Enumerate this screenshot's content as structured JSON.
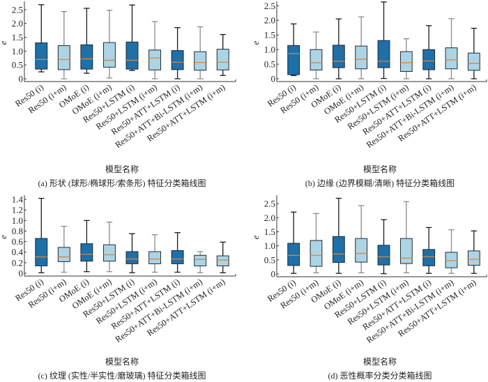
{
  "colors": {
    "dark_box": "#1f6fa8",
    "light_box": "#add4e4",
    "median": "#d9863a",
    "median_alt": "#8a8a8a",
    "whisker_dark": "#1a1a1a",
    "whisker_gray": "#8a8a8a",
    "axis": "#333333"
  },
  "chart_data": [
    {
      "id": "a",
      "type": "box",
      "ylabel": "e",
      "xlabel": "模型名称",
      "caption": "(a)  形状 (球形/椭球形/索条形) 特征分类箱线图",
      "ylim": [
        0,
        2.8
      ],
      "yticks": [
        0,
        0.5,
        1.0,
        1.5,
        2.0,
        2.5
      ],
      "ytick_labels": [
        "0",
        "0.5",
        "1.0",
        "1.5",
        "2.0",
        "2.5"
      ],
      "categories": [
        "Res50 (i)",
        "Res50 (i+m)",
        "OMoE (i)",
        "OMoE (i+m)",
        "Res50+LSTM (i)",
        "Res50+LSTM (i+m)",
        "Res50+ATT+LSTM (i)",
        "Res50+ATT+Bi-LSTM (i+m)",
        "Res50+ATT+LSTM (i+m)"
      ],
      "boxes": [
        {
          "min": 0.25,
          "q1": 0.35,
          "median": 0.7,
          "q3": 1.3,
          "max": 2.68,
          "style": "dark"
        },
        {
          "min": 0.0,
          "q1": 0.33,
          "median": 0.7,
          "q3": 1.2,
          "max": 2.43,
          "style": "light"
        },
        {
          "min": 0.2,
          "q1": 0.35,
          "median": 0.72,
          "q3": 1.23,
          "max": 2.55,
          "style": "dark"
        },
        {
          "min": 0.03,
          "q1": 0.42,
          "median": 0.67,
          "q3": 1.31,
          "max": 2.48,
          "style": "light"
        },
        {
          "min": 0.3,
          "q1": 0.35,
          "median": 0.67,
          "q3": 1.33,
          "max": 2.67,
          "style": "dark"
        },
        {
          "min": 0.0,
          "q1": 0.32,
          "median": 0.75,
          "q3": 1.04,
          "max": 2.07,
          "style": "light"
        },
        {
          "min": 0.0,
          "q1": 0.33,
          "median": 0.6,
          "q3": 1.02,
          "max": 1.85,
          "style": "dark"
        },
        {
          "min": 0.0,
          "q1": 0.31,
          "median": 0.59,
          "q3": 0.98,
          "max": 1.88,
          "style": "light"
        },
        {
          "min": 0.12,
          "q1": 0.32,
          "median": 0.6,
          "q3": 1.07,
          "max": 1.6,
          "style": "light"
        }
      ]
    },
    {
      "id": "b",
      "type": "box",
      "ylabel": "e",
      "xlabel": "模型名称",
      "caption": "(b)  边缘 (边界模糊/清晰) 特征分类箱线图",
      "ylim": [
        0,
        2.65
      ],
      "yticks": [
        0,
        0.5,
        1.0,
        1.5,
        2.0,
        2.5
      ],
      "ytick_labels": [
        "0",
        "0.5",
        "1.0",
        "1.5",
        "2.0",
        "2.5"
      ],
      "categories": [
        "Res50 (i)",
        "Res50 (i+m)",
        "OMoE (i)",
        "OMoE (i+m)",
        "Res50+LSTM (i)",
        "Res50+LSTM (i+m)",
        "Res50+ATT+LSTM (i)",
        "Res50+ATT+Bi-LSTM (i+m)",
        "Res50+ATT+LSTM (i+m)"
      ],
      "boxes": [
        {
          "min": 0.11,
          "q1": 0.14,
          "median": 0.86,
          "q3": 1.14,
          "max": 1.88,
          "style": "dark"
        },
        {
          "min": 0.0,
          "q1": 0.3,
          "median": 0.55,
          "q3": 1.0,
          "max": 1.6,
          "style": "light"
        },
        {
          "min": 0.0,
          "q1": 0.38,
          "median": 0.6,
          "q3": 1.15,
          "max": 2.05,
          "style": "dark"
        },
        {
          "min": 0.0,
          "q1": 0.34,
          "median": 0.67,
          "q3": 1.12,
          "max": 2.12,
          "style": "light"
        },
        {
          "min": 0.01,
          "q1": 0.38,
          "median": 0.6,
          "q3": 1.31,
          "max": 2.63,
          "style": "dark"
        },
        {
          "min": 0.0,
          "q1": 0.25,
          "median": 0.55,
          "q3": 0.93,
          "max": 1.37,
          "style": "light"
        },
        {
          "min": 0.0,
          "q1": 0.31,
          "median": 0.61,
          "q3": 1.0,
          "max": 1.82,
          "style": "dark"
        },
        {
          "min": 0.0,
          "q1": 0.34,
          "median": 0.65,
          "q3": 1.06,
          "max": 2.06,
          "style": "light"
        },
        {
          "min": 0.0,
          "q1": 0.29,
          "median": 0.53,
          "q3": 0.88,
          "max": 1.73,
          "style": "light"
        }
      ]
    },
    {
      "id": "c",
      "type": "box",
      "ylabel": "e",
      "xlabel": "模型名称",
      "caption": "(c)  纹理 (实性/半实性/磨玻璃) 特征分类箱线图",
      "ylim": [
        0,
        1.48
      ],
      "yticks": [
        0,
        0.2,
        0.4,
        0.6,
        0.8,
        1.0,
        1.2,
        1.4
      ],
      "ytick_labels": [
        "0",
        "0.2",
        "0.4",
        "0.6",
        "0.8",
        "1.0",
        "1.2",
        "1.4"
      ],
      "categories": [
        "Res50 (i)",
        "Res50 (i+m)",
        "OMoE (i)",
        "OMoE (i+m)",
        "Res50+LSTM (i)",
        "Res50+LSTM (i+m)",
        "Res50+ATT+LSTM (i)",
        "Res50+ATT+Bi-LSTM (i+m)",
        "Res50+ATT+LSTM (i+m)"
      ],
      "boxes": [
        {
          "min": 0.01,
          "q1": 0.14,
          "median": 0.31,
          "q3": 0.66,
          "max": 1.42,
          "style": "dark"
        },
        {
          "min": 0.02,
          "q1": 0.22,
          "median": 0.31,
          "q3": 0.49,
          "max": 0.89,
          "style": "light"
        },
        {
          "min": 0.03,
          "q1": 0.23,
          "median": 0.36,
          "q3": 0.56,
          "max": 1.0,
          "style": "dark"
        },
        {
          "min": 0.03,
          "q1": 0.23,
          "median": 0.35,
          "q3": 0.54,
          "max": 0.97,
          "style": "light"
        },
        {
          "min": 0.01,
          "q1": 0.18,
          "median": 0.27,
          "q3": 0.41,
          "max": 0.75,
          "style": "dark"
        },
        {
          "min": 0.02,
          "q1": 0.18,
          "median": 0.27,
          "q3": 0.41,
          "max": 0.73,
          "style": "light"
        },
        {
          "min": 0.02,
          "q1": 0.18,
          "median": 0.27,
          "q3": 0.43,
          "max": 0.77,
          "style": "dark"
        },
        {
          "min": 0.01,
          "q1": 0.14,
          "median": 0.26,
          "q3": 0.34,
          "max": 0.41,
          "style": "light"
        },
        {
          "min": 0.01,
          "q1": 0.14,
          "median": 0.25,
          "q3": 0.33,
          "max": 0.59,
          "style": "light"
        }
      ]
    },
    {
      "id": "d",
      "type": "box",
      "ylabel": "e",
      "xlabel": "模型名称",
      "caption": "(d)  恶性概率分类分类箱线图",
      "ylim": [
        0,
        2.8
      ],
      "yticks": [
        0,
        0.5,
        1.0,
        1.5,
        2.0,
        2.5
      ],
      "ytick_labels": [
        "0",
        "0.5",
        "1.0",
        "1.5",
        "2.0",
        "2.5"
      ],
      "categories": [
        "Res50 (i)",
        "Res50 (i+m)",
        "OMoE (i)",
        "OMoE (i+m)",
        "Res50+LSTM (i)",
        "Res50+LSTM (i+m)",
        "Res50+ATT+LSTM (i)",
        "Res50+ATT+Bi-LSTM (i+m)",
        "Res50+ATT+LSTM (i+m)"
      ],
      "boxes": [
        {
          "min": 0.02,
          "q1": 0.3,
          "median": 0.66,
          "q3": 1.09,
          "max": 2.2,
          "style": "dark"
        },
        {
          "min": 0.04,
          "q1": 0.27,
          "median": 0.66,
          "q3": 1.19,
          "max": 2.15,
          "style": "light"
        },
        {
          "min": 0.02,
          "q1": 0.41,
          "median": 0.71,
          "q3": 1.33,
          "max": 2.69,
          "style": "dark"
        },
        {
          "min": 0.04,
          "q1": 0.42,
          "median": 0.73,
          "q3": 1.26,
          "max": 2.43,
          "style": "light"
        },
        {
          "min": 0.01,
          "q1": 0.32,
          "median": 0.61,
          "q3": 1.02,
          "max": 1.93,
          "style": "dark"
        },
        {
          "min": 0.04,
          "q1": 0.37,
          "median": 0.56,
          "q3": 1.26,
          "max": 2.57,
          "style": "light"
        },
        {
          "min": 0.02,
          "q1": 0.29,
          "median": 0.61,
          "q3": 0.87,
          "max": 1.65,
          "style": "dark"
        },
        {
          "min": 0.02,
          "q1": 0.22,
          "median": 0.47,
          "q3": 0.77,
          "max": 1.57,
          "style": "light"
        },
        {
          "min": 0.02,
          "q1": 0.31,
          "median": 0.52,
          "q3": 0.82,
          "max": 1.53,
          "style": "light"
        }
      ]
    }
  ]
}
